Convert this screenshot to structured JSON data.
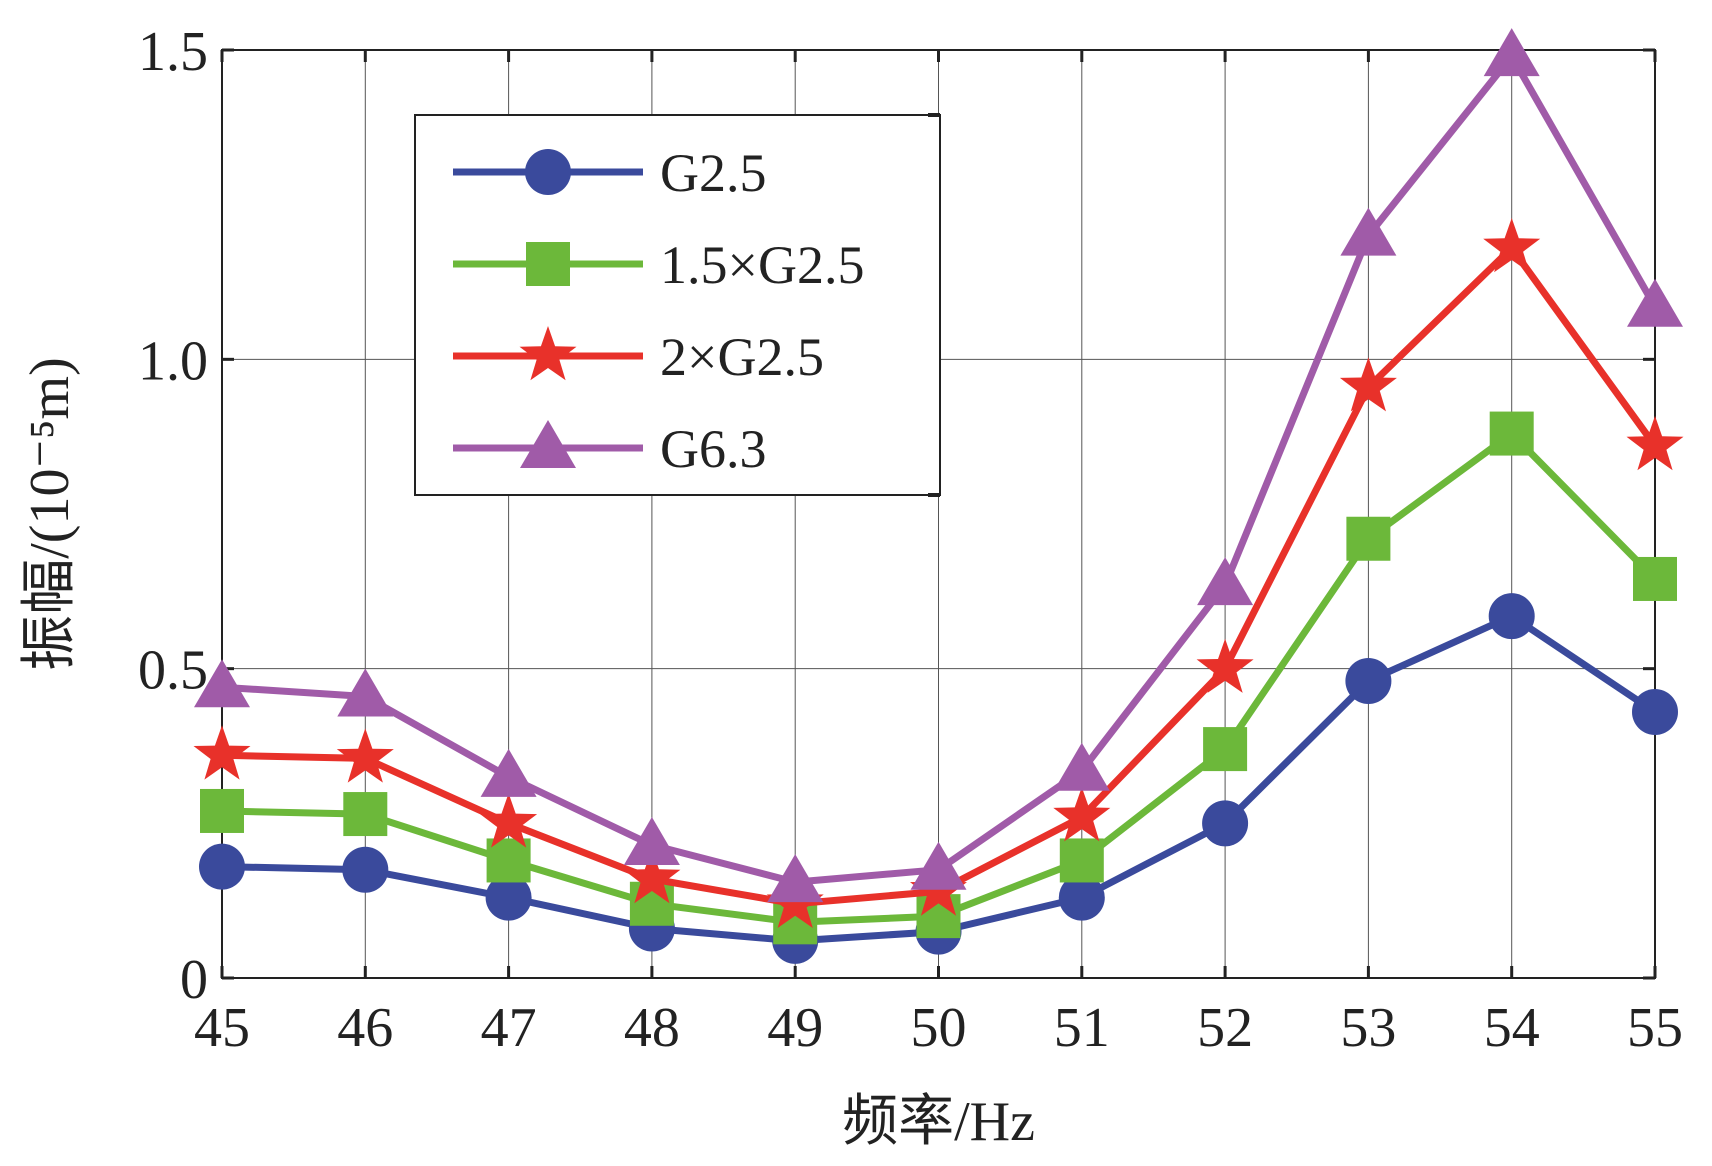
{
  "chart_data": {
    "type": "line",
    "x": [
      45,
      46,
      47,
      48,
      49,
      50,
      51,
      52,
      53,
      54,
      55
    ],
    "xlim": [
      45,
      55
    ],
    "ylim": [
      0,
      1.5
    ],
    "xticks": [
      "45",
      "46",
      "47",
      "48",
      "49",
      "50",
      "51",
      "52",
      "53",
      "54",
      "55"
    ],
    "yticks": [
      {
        "value": 0,
        "label": "0"
      },
      {
        "value": 0.5,
        "label": "0.5"
      },
      {
        "value": 1.0,
        "label": "1.0"
      },
      {
        "value": 1.5,
        "label": "1.5"
      }
    ],
    "xlabel": "频率/Hz",
    "ylabel": "振幅/(10⁻⁵m)",
    "grid": true,
    "legend_position": "top-left",
    "series": [
      {
        "name": "G2.5",
        "color": "#3a4a9c",
        "marker": "circle",
        "values": [
          0.18,
          0.175,
          0.13,
          0.08,
          0.06,
          0.075,
          0.13,
          0.25,
          0.48,
          0.585,
          0.43
        ]
      },
      {
        "name": "1.5×G2.5",
        "color": "#6cb83a",
        "marker": "square",
        "values": [
          0.27,
          0.265,
          0.19,
          0.12,
          0.09,
          0.1,
          0.19,
          0.37,
          0.71,
          0.88,
          0.645
        ]
      },
      {
        "name": "2×G2.5",
        "color": "#e8312a",
        "marker": "star",
        "values": [
          0.36,
          0.355,
          0.25,
          0.16,
          0.12,
          0.14,
          0.26,
          0.5,
          0.955,
          1.18,
          0.86
        ]
      },
      {
        "name": "G6.3",
        "color": "#a05ba8",
        "marker": "triangle",
        "values": [
          0.47,
          0.455,
          0.325,
          0.215,
          0.155,
          0.175,
          0.335,
          0.635,
          1.2,
          1.49,
          1.085
        ]
      }
    ]
  }
}
